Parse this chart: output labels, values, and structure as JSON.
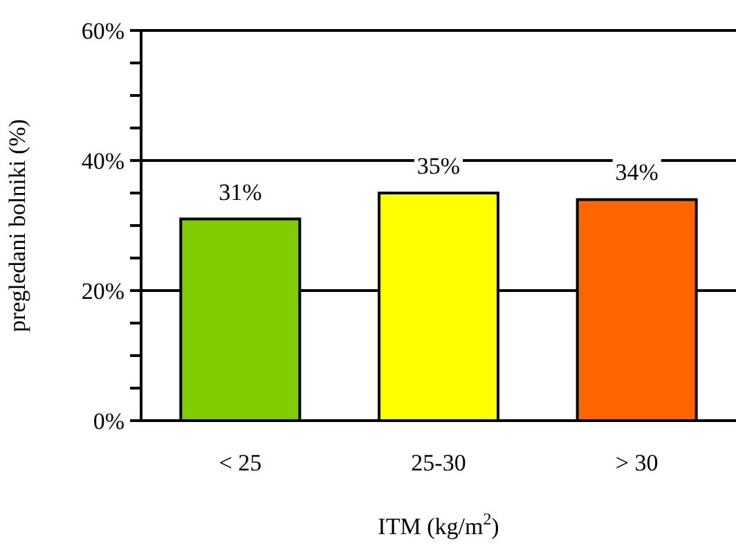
{
  "chart_data": {
    "type": "bar",
    "xlabel": "ITM (kg/m$^{2}$)",
    "ylabel": "pregledani bolniki (%)",
    "categories": [
      "< 25",
      "25-30",
      "> 30"
    ],
    "values": [
      31,
      35,
      34
    ],
    "colors": [
      "#80cc00",
      "#ffff00",
      "#ff6600"
    ],
    "value_labels": [
      "31%",
      "35%",
      "34%"
    ],
    "ylim": [
      0,
      60
    ],
    "yticks": [
      {
        "value": 0,
        "label": "0%"
      },
      {
        "value": 5,
        "label": null
      },
      {
        "value": 10,
        "label": null
      },
      {
        "value": 15,
        "label": null
      },
      {
        "value": 20,
        "label": "20%"
      },
      {
        "value": 25,
        "label": null
      },
      {
        "value": 30,
        "label": null
      },
      {
        "value": 35,
        "label": null
      },
      {
        "value": 40,
        "label": "40%"
      },
      {
        "value": 45,
        "label": null
      },
      {
        "value": 50,
        "label": null
      },
      {
        "value": 55,
        "label": null
      },
      {
        "value": 60,
        "label": "60%"
      }
    ],
    "grid": "y",
    "legend": false
  }
}
